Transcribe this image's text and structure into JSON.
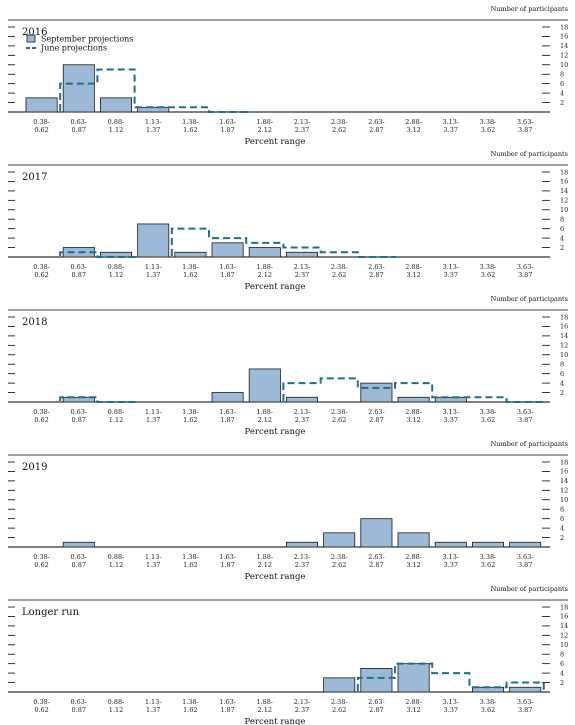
{
  "figure": {
    "y_unit_label": "Number of participants",
    "x_axis_label": "Percent range",
    "legend": {
      "september": "September projections",
      "june": "June projections"
    },
    "colors": {
      "bar_fill": "#9db9d8",
      "bar_stroke": "#1a1a1a",
      "june_line": "#1f6e8c",
      "axis": "#000000"
    }
  },
  "chart_data": [
    {
      "type": "bar",
      "title": "2016",
      "categories": [
        "0.38-\n0.62",
        "0.63-\n0.87",
        "0.88-\n1.12",
        "1.13-\n1.37",
        "1.38-\n1.62",
        "1.63-\n1.87",
        "1.88-\n2.12",
        "2.13-\n2.37",
        "2.38-\n2.62",
        "2.63-\n2.87",
        "2.88-\n3.12",
        "3.13-\n3.37",
        "3.38-\n3.62",
        "3.63-\n3.87"
      ],
      "series": [
        {
          "name": "September projections",
          "values": [
            3,
            10,
            3,
            1,
            0,
            0,
            0,
            0,
            0,
            0,
            0,
            0,
            0,
            0
          ]
        },
        {
          "name": "June projections",
          "values": [
            0,
            6,
            9,
            1,
            1,
            0,
            0,
            0,
            0,
            0,
            0,
            0,
            0,
            0
          ]
        }
      ],
      "ylim": [
        0,
        18
      ],
      "yticks": [
        2,
        4,
        6,
        8,
        10,
        12,
        14,
        16,
        18
      ],
      "legend": "top-left"
    },
    {
      "type": "bar",
      "title": "2017",
      "categories": [
        "0.38-\n0.62",
        "0.63-\n0.87",
        "0.88-\n1.12",
        "1.13-\n1.37",
        "1.38-\n1.62",
        "1.63-\n1.87",
        "1.88-\n2.12",
        "2.13-\n2.37",
        "2.38-\n2.62",
        "2.63-\n2.87",
        "2.88-\n3.12",
        "3.13-\n3.37",
        "3.38-\n3.62",
        "3.63-\n3.87"
      ],
      "series": [
        {
          "name": "September projections",
          "values": [
            0,
            2,
            1,
            7,
            1,
            3,
            2,
            1,
            0,
            0,
            0,
            0,
            0,
            0
          ]
        },
        {
          "name": "June projections",
          "values": [
            0,
            1,
            0,
            0,
            6,
            4,
            3,
            2,
            1,
            0,
            0,
            0,
            0,
            0
          ]
        }
      ],
      "ylim": [
        0,
        18
      ],
      "yticks": [
        2,
        4,
        6,
        8,
        10,
        12,
        14,
        16,
        18
      ]
    },
    {
      "type": "bar",
      "title": "2018",
      "categories": [
        "0.38-\n0.62",
        "0.63-\n0.87",
        "0.88-\n1.12",
        "1.13-\n1.37",
        "1.38-\n1.62",
        "1.63-\n1.87",
        "1.88-\n2.12",
        "2.13-\n2.37",
        "2.38-\n2.62",
        "2.63-\n2.87",
        "2.88-\n3.12",
        "3.13-\n3.37",
        "3.38-\n3.62",
        "3.63-\n3.87"
      ],
      "series": [
        {
          "name": "September projections",
          "values": [
            0,
            1,
            0,
            0,
            0,
            2,
            7,
            1,
            0,
            4,
            1,
            1,
            0,
            0
          ]
        },
        {
          "name": "June projections",
          "values": [
            0,
            1,
            0,
            0,
            0,
            0,
            0,
            4,
            5,
            3,
            4,
            1,
            1,
            0
          ]
        }
      ],
      "ylim": [
        0,
        18
      ],
      "yticks": [
        2,
        4,
        6,
        8,
        10,
        12,
        14,
        16,
        18
      ]
    },
    {
      "type": "bar",
      "title": "2019",
      "categories": [
        "0.38-\n0.62",
        "0.63-\n0.87",
        "0.88-\n1.12",
        "1.13-\n1.37",
        "1.38-\n1.62",
        "1.63-\n1.87",
        "1.88-\n2.12",
        "2.13-\n2.37",
        "2.38-\n2.62",
        "2.63-\n2.87",
        "2.88-\n3.12",
        "3.13-\n3.37",
        "3.38-\n3.62",
        "3.63-\n3.87"
      ],
      "series": [
        {
          "name": "September projections",
          "values": [
            0,
            1,
            0,
            0,
            0,
            0,
            0,
            1,
            3,
            6,
            3,
            1,
            1,
            1
          ]
        }
      ],
      "ylim": [
        0,
        18
      ],
      "yticks": [
        2,
        4,
        6,
        8,
        10,
        12,
        14,
        16,
        18
      ]
    },
    {
      "type": "bar",
      "title": "Longer run",
      "categories": [
        "0.38-\n0.62",
        "0.63-\n0.87",
        "0.88-\n1.12",
        "1.13-\n1.37",
        "1.38-\n1.62",
        "1.63-\n1.87",
        "1.88-\n2.12",
        "2.13-\n2.37",
        "2.38-\n2.62",
        "2.63-\n2.87",
        "2.88-\n3.12",
        "3.13-\n3.37",
        "3.38-\n3.62",
        "3.63-\n3.87"
      ],
      "series": [
        {
          "name": "September projections",
          "values": [
            0,
            0,
            0,
            0,
            0,
            0,
            0,
            0,
            3,
            5,
            6,
            0,
            1,
            1
          ]
        },
        {
          "name": "June projections",
          "values": [
            0,
            0,
            0,
            0,
            0,
            0,
            0,
            0,
            0,
            3,
            6,
            4,
            1,
            2
          ]
        }
      ],
      "ylim": [
        0,
        18
      ],
      "yticks": [
        2,
        4,
        6,
        8,
        10,
        12,
        14,
        16,
        18
      ]
    }
  ]
}
